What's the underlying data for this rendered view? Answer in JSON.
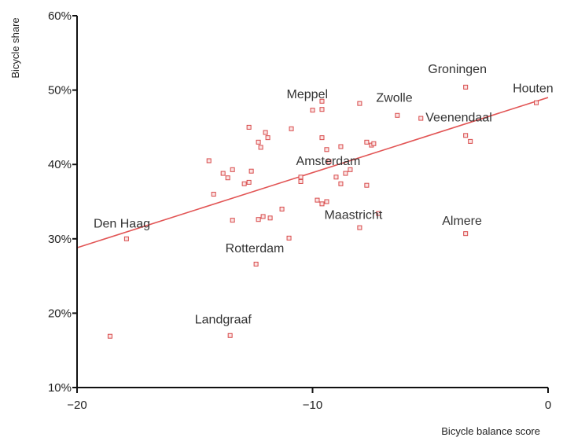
{
  "chart_data": {
    "type": "scatter",
    "xlabel": "Bicycle balance score",
    "ylabel": "Bicycle share",
    "xlim": [
      -20,
      0
    ],
    "ylim": [
      10,
      60
    ],
    "x_ticks": [
      -20,
      -10,
      0
    ],
    "y_ticks": [
      10,
      20,
      30,
      40,
      50,
      60
    ],
    "y_tick_labels": [
      "10%",
      "20%",
      "30%",
      "40%",
      "50%",
      "60%"
    ],
    "grid": false,
    "colors": {
      "marker": "#d84a4a",
      "trend": "#e25555"
    },
    "trendline": {
      "x": [
        -20,
        0
      ],
      "y": [
        28.8,
        49.0
      ]
    },
    "points": [
      {
        "x": -18.6,
        "y": 16.9
      },
      {
        "x": -17.9,
        "y": 30.0
      },
      {
        "x": -14.4,
        "y": 40.5
      },
      {
        "x": -14.2,
        "y": 36.0
      },
      {
        "x": -13.8,
        "y": 38.8
      },
      {
        "x": -13.6,
        "y": 38.2
      },
      {
        "x": -13.4,
        "y": 39.3
      },
      {
        "x": -13.4,
        "y": 32.5
      },
      {
        "x": -13.5,
        "y": 17.0
      },
      {
        "x": -12.9,
        "y": 37.4
      },
      {
        "x": -12.7,
        "y": 37.6
      },
      {
        "x": -12.7,
        "y": 45.0
      },
      {
        "x": -12.6,
        "y": 39.1
      },
      {
        "x": -12.3,
        "y": 43.0
      },
      {
        "x": -12.2,
        "y": 42.3
      },
      {
        "x": -12.0,
        "y": 44.3
      },
      {
        "x": -11.9,
        "y": 43.6
      },
      {
        "x": -12.3,
        "y": 32.6
      },
      {
        "x": -12.1,
        "y": 33.0
      },
      {
        "x": -11.8,
        "y": 32.8
      },
      {
        "x": -11.3,
        "y": 34.0
      },
      {
        "x": -12.4,
        "y": 26.6
      },
      {
        "x": -11.0,
        "y": 30.1
      },
      {
        "x": -10.9,
        "y": 44.8
      },
      {
        "x": -10.5,
        "y": 37.7
      },
      {
        "x": -10.5,
        "y": 38.3
      },
      {
        "x": -10.0,
        "y": 47.3
      },
      {
        "x": -9.6,
        "y": 48.5
      },
      {
        "x": -9.6,
        "y": 47.4
      },
      {
        "x": -9.6,
        "y": 43.6
      },
      {
        "x": -9.4,
        "y": 42.0
      },
      {
        "x": -9.3,
        "y": 40.4
      },
      {
        "x": -9.8,
        "y": 35.2
      },
      {
        "x": -9.6,
        "y": 34.7
      },
      {
        "x": -9.4,
        "y": 35.0
      },
      {
        "x": -9.0,
        "y": 38.3
      },
      {
        "x": -8.8,
        "y": 37.4
      },
      {
        "x": -8.6,
        "y": 38.8
      },
      {
        "x": -8.4,
        "y": 39.3
      },
      {
        "x": -8.8,
        "y": 42.4
      },
      {
        "x": -8.0,
        "y": 48.2
      },
      {
        "x": -7.7,
        "y": 43.0
      },
      {
        "x": -7.5,
        "y": 42.6
      },
      {
        "x": -7.4,
        "y": 42.8
      },
      {
        "x": -7.7,
        "y": 37.2
      },
      {
        "x": -8.0,
        "y": 31.5
      },
      {
        "x": -7.2,
        "y": 33.4
      },
      {
        "x": -6.4,
        "y": 46.6
      },
      {
        "x": -5.4,
        "y": 46.2
      },
      {
        "x": -3.5,
        "y": 50.4
      },
      {
        "x": -3.5,
        "y": 43.9
      },
      {
        "x": -3.3,
        "y": 43.1
      },
      {
        "x": -3.5,
        "y": 30.7
      },
      {
        "x": -0.5,
        "y": 48.3
      }
    ],
    "annotations": [
      {
        "text": "Groningen",
        "x": -5.1,
        "y": 52.3,
        "anchor": "start"
      },
      {
        "text": "Houten",
        "x": -1.5,
        "y": 49.7,
        "anchor": "start"
      },
      {
        "text": "Meppel",
        "x": -11.1,
        "y": 48.9,
        "anchor": "start"
      },
      {
        "text": "Zwolle",
        "x": -7.3,
        "y": 48.4,
        "anchor": "start"
      },
      {
        "text": "Veenendaal",
        "x": -5.2,
        "y": 45.8,
        "anchor": "start"
      },
      {
        "text": "Amsterdam",
        "x": -10.7,
        "y": 39.9,
        "anchor": "start"
      },
      {
        "text": "Maastricht",
        "x": -9.5,
        "y": 32.7,
        "anchor": "start"
      },
      {
        "text": "Almere",
        "x": -4.5,
        "y": 31.9,
        "anchor": "start"
      },
      {
        "text": "Den Haag",
        "x": -19.3,
        "y": 31.5,
        "anchor": "start"
      },
      {
        "text": "Rotterdam",
        "x": -13.7,
        "y": 28.2,
        "anchor": "start"
      },
      {
        "text": "Landgraaf",
        "x": -15.0,
        "y": 18.6,
        "anchor": "start"
      }
    ]
  }
}
